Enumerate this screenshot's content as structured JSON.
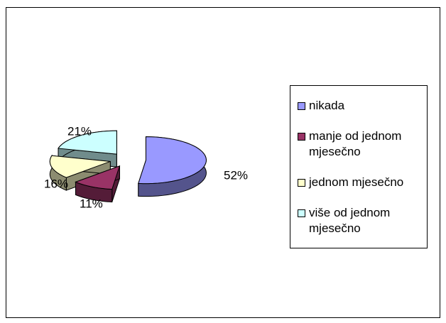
{
  "chart_data": {
    "type": "pie3d",
    "categories": [
      "nikada",
      "manje od jednom mjesečno",
      "jednom mjesečno",
      "više od jednom mjesečno"
    ],
    "values": [
      52,
      11,
      16,
      21
    ],
    "value_labels": [
      "52%",
      "11%",
      "16%",
      "21%"
    ],
    "colors": [
      "#9999ff",
      "#993366",
      "#ffffcc",
      "#ccffff"
    ],
    "legend": "right"
  }
}
